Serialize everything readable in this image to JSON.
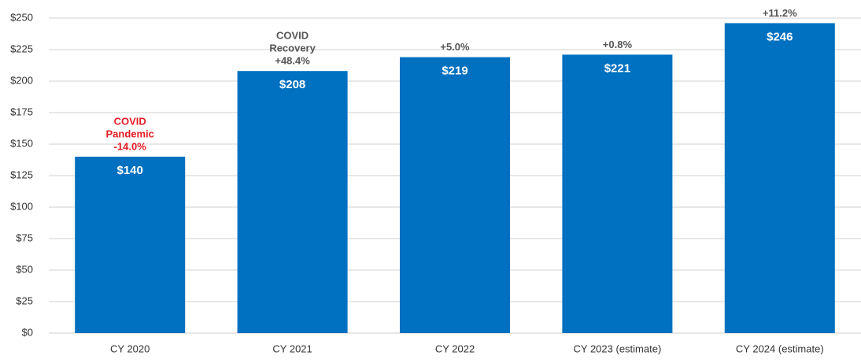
{
  "chart_data": {
    "type": "bar",
    "categories": [
      "CY 2020",
      "CY 2021",
      "CY 2022",
      "CY 2023 (estimate)",
      "CY 2024 (estimate)"
    ],
    "values": [
      140,
      208,
      219,
      221,
      246
    ],
    "value_labels": [
      "$140",
      "$208",
      "$219",
      "$221",
      "$246"
    ],
    "color": "#0070c0",
    "annotations": [
      {
        "lines": [
          "COVID",
          "Pandemic",
          "-14.0%"
        ],
        "color": "#e31b23"
      },
      {
        "lines": [
          "COVID",
          "Recovery",
          "+48.4%"
        ],
        "color": "#555555"
      },
      {
        "lines": [
          "+5.0%"
        ],
        "color": "#555555"
      },
      {
        "lines": [
          "+0.8%"
        ],
        "color": "#555555"
      },
      {
        "lines": [
          "+11.2%"
        ],
        "color": "#555555"
      }
    ],
    "ylim": [
      0,
      250
    ],
    "yticks": [
      {
        "value": 0,
        "label": "$0"
      },
      {
        "value": 25,
        "label": "$25"
      },
      {
        "value": 50,
        "label": "$50"
      },
      {
        "value": 75,
        "label": "$75"
      },
      {
        "value": 100,
        "label": "$100"
      },
      {
        "value": 125,
        "label": "$125"
      },
      {
        "value": 150,
        "label": "$150"
      },
      {
        "value": 175,
        "label": "$175"
      },
      {
        "value": 200,
        "label": "$200"
      },
      {
        "value": 225,
        "label": "$225"
      },
      {
        "value": 250,
        "label": "$250"
      }
    ],
    "grid": true
  }
}
